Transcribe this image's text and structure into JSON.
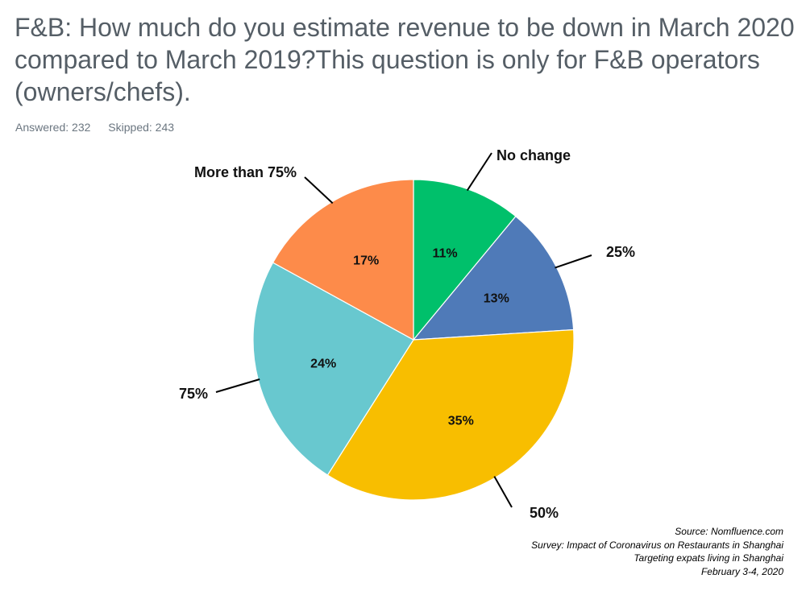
{
  "question": {
    "title": "F&B: How much do you estimate revenue to be down in March 2020 compared to March 2019?This question is only for F&B operators (owners/chefs).",
    "answered": "Answered: 232",
    "skipped": "Skipped: 243"
  },
  "chart_data": {
    "type": "pie",
    "title": "F&B: How much do you estimate revenue to be down in March 2020 compared to March 2019?This question is only for F&B operators (owners/chefs).",
    "start_angle_deg": 0,
    "direction": "clockwise",
    "slices": [
      {
        "name": "No change",
        "value": 11,
        "label": "11%",
        "color": "#00c06b"
      },
      {
        "name": "25%",
        "value": 13,
        "label": "13%",
        "color": "#4f7ab8"
      },
      {
        "name": "50%",
        "value": 35,
        "label": "35%",
        "color": "#f8be00"
      },
      {
        "name": "75%",
        "value": 24,
        "label": "24%",
        "color": "#68c8cf"
      },
      {
        "name": "More than 75%",
        "value": 17,
        "label": "17%",
        "color": "#fd8b4a"
      }
    ]
  },
  "source": {
    "line1": "Source: Nomfluence.com",
    "line2": "Survey: Impact of Coronavirus on Restaurants in Shanghai",
    "line3": "Targeting expats living in Shanghai",
    "line4": "February 3-4, 2020"
  }
}
